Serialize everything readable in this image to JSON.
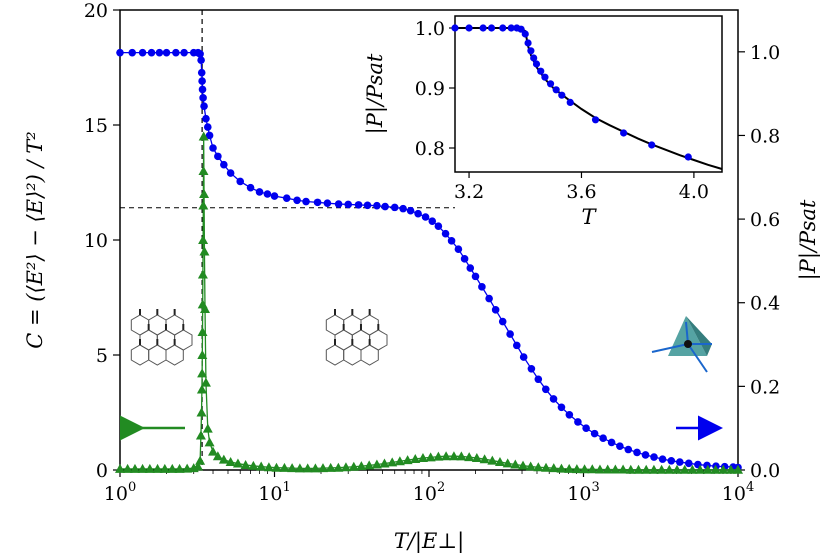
{
  "chart_data": [
    {
      "type": "scatter",
      "x_scale": "log",
      "xlim": [
        1,
        10000
      ],
      "ylim_left": [
        0,
        20
      ],
      "ylim_right": [
        0,
        1.1
      ],
      "xlabel": "T/|E⊥|",
      "ylabel_left": "C = (⟨E²⟩ − ⟨E⟩²) / T²",
      "ylabel_right": "|P|/Psat",
      "x_tick_labels": [
        {
          "base": "10",
          "exp": "0"
        },
        {
          "base": "10",
          "exp": "1"
        },
        {
          "base": "10",
          "exp": "2"
        },
        {
          "base": "10",
          "exp": "3"
        },
        {
          "base": "10",
          "exp": "4"
        }
      ],
      "y_left_ticks": [
        "0",
        "5",
        "10",
        "15",
        "20"
      ],
      "y_right_ticks": [
        "0.0",
        "0.2",
        "0.4",
        "0.6",
        "0.8",
        "1.0"
      ],
      "series": [
        {
          "axis": "right",
          "color": "#0000ee",
          "marker": "circle",
          "x": [
            1.0,
            1.2,
            1.4,
            1.6,
            1.8,
            2.0,
            2.3,
            2.6,
            3.0,
            3.2,
            3.3,
            3.35,
            3.38,
            3.4,
            3.42,
            3.45,
            3.5,
            3.6,
            3.7,
            3.8,
            4.0,
            4.3,
            4.7,
            5.2,
            6,
            7,
            8,
            9,
            10,
            12,
            14,
            16,
            19,
            22,
            26,
            30,
            35,
            40,
            46,
            52,
            60,
            68,
            76,
            85,
            95,
            105,
            115,
            128,
            140,
            155,
            170,
            185,
            200,
            220,
            245,
            270,
            300,
            335,
            370,
            410,
            460,
            510,
            570,
            640,
            720,
            810,
            920,
            1040,
            1180,
            1340,
            1520,
            1720,
            1950,
            2220,
            2520,
            2860,
            3250,
            3700,
            4200,
            4800,
            5500,
            6300,
            7200,
            8200,
            9300,
            10000
          ],
          "y": [
            0.998,
            0.998,
            0.998,
            0.998,
            0.998,
            0.998,
            0.998,
            0.998,
            0.998,
            0.998,
            0.995,
            0.98,
            0.95,
            0.93,
            0.91,
            0.89,
            0.87,
            0.84,
            0.82,
            0.8,
            0.77,
            0.75,
            0.73,
            0.71,
            0.69,
            0.675,
            0.665,
            0.66,
            0.655,
            0.65,
            0.645,
            0.642,
            0.64,
            0.638,
            0.636,
            0.635,
            0.634,
            0.633,
            0.632,
            0.63,
            0.628,
            0.625,
            0.62,
            0.613,
            0.605,
            0.595,
            0.583,
            0.565,
            0.548,
            0.528,
            0.505,
            0.483,
            0.463,
            0.438,
            0.41,
            0.383,
            0.355,
            0.325,
            0.298,
            0.27,
            0.242,
            0.217,
            0.193,
            0.17,
            0.15,
            0.132,
            0.115,
            0.1,
            0.087,
            0.076,
            0.066,
            0.057,
            0.049,
            0.042,
            0.036,
            0.031,
            0.026,
            0.022,
            0.019,
            0.016,
            0.013,
            0.011,
            0.009,
            0.008,
            0.007,
            0.006
          ]
        },
        {
          "axis": "left",
          "color": "#228B22",
          "marker": "triangle",
          "x": [
            1.0,
            1.12,
            1.25,
            1.4,
            1.56,
            1.75,
            1.95,
            2.18,
            2.43,
            2.72,
            3.0,
            3.2,
            3.3,
            3.34,
            3.37,
            3.39,
            3.4,
            3.41,
            3.42,
            3.43,
            3.44,
            3.45,
            3.46,
            3.47,
            3.48,
            3.5,
            3.52,
            3.55,
            3.6,
            3.7,
            3.8,
            4.0,
            4.3,
            4.7,
            5.2,
            5.8,
            6.5,
            7.3,
            8.2,
            9.2,
            10.3,
            11.6,
            13,
            14.6,
            16.4,
            18.4,
            20.6,
            23.1,
            25.9,
            29,
            32.6,
            36.5,
            41,
            46,
            51.5,
            57.8,
            64.8,
            72.7,
            81.5,
            91.4,
            102.5,
            115,
            129,
            145,
            162,
            182,
            204,
            229,
            257,
            288,
            323,
            362,
            406,
            455,
            510,
            572,
            642,
            720,
            808,
            906,
            1016,
            1140,
            1278,
            1434,
            1608,
            1804,
            2023,
            2270,
            2546,
            2856,
            3203,
            3593,
            4030,
            4520,
            5070,
            5687,
            6379,
            7155,
            8026,
            9000,
            10000
          ],
          "y": [
            0.05,
            0.05,
            0.05,
            0.05,
            0.05,
            0.05,
            0.05,
            0.05,
            0.05,
            0.06,
            0.08,
            0.15,
            0.4,
            1.5,
            2.5,
            3.5,
            4.2,
            5.0,
            6.0,
            7.2,
            8.5,
            10.0,
            11.5,
            13.0,
            14.5,
            12.0,
            9.5,
            7.0,
            3.8,
            1.8,
            1.2,
            0.8,
            0.6,
            0.45,
            0.35,
            0.28,
            0.22,
            0.18,
            0.15,
            0.12,
            0.1,
            0.09,
            0.08,
            0.07,
            0.07,
            0.07,
            0.08,
            0.09,
            0.1,
            0.12,
            0.14,
            0.17,
            0.2,
            0.24,
            0.28,
            0.33,
            0.38,
            0.43,
            0.48,
            0.52,
            0.55,
            0.58,
            0.6,
            0.6,
            0.59,
            0.56,
            0.52,
            0.47,
            0.41,
            0.35,
            0.29,
            0.24,
            0.19,
            0.15,
            0.12,
            0.1,
            0.08,
            0.06,
            0.05,
            0.04,
            0.03,
            0.03,
            0.02,
            0.02,
            0.02,
            0.02,
            0.01,
            0.01,
            0.01,
            0.01,
            0.01,
            0.01,
            0.01,
            0.01,
            0.01,
            0.01,
            0.01,
            0.01,
            0.01,
            0.01,
            0.01
          ]
        }
      ],
      "reference_lines": {
        "vertical_x": 3.4,
        "horizontal_y_left": 11.4
      },
      "arrows": [
        {
          "side": "left",
          "color": "#228B22"
        },
        {
          "side": "right",
          "color": "#0000ee"
        }
      ]
    },
    {
      "type": "scatter",
      "xlim": [
        3.15,
        4.1
      ],
      "ylim": [
        0.76,
        1.02
      ],
      "xlabel": "T",
      "ylabel": "|P|/Psat",
      "x_ticks": [
        "3.2",
        "3.6",
        "4.0"
      ],
      "y_ticks": [
        "0.8",
        "0.9",
        "1.0"
      ],
      "curve": {
        "color": "#000000",
        "x": [
          3.15,
          3.2,
          3.25,
          3.3,
          3.35,
          3.38,
          3.4,
          3.41,
          3.42,
          3.44,
          3.47,
          3.5,
          3.55,
          3.6,
          3.65,
          3.7,
          3.75,
          3.8,
          3.85,
          3.9,
          3.95,
          4.0,
          4.05,
          4.1
        ],
        "y": [
          1.0,
          1.0,
          1.0,
          1.0,
          1.0,
          1.0,
          0.995,
          0.97,
          0.955,
          0.935,
          0.915,
          0.9,
          0.882,
          0.865,
          0.85,
          0.838,
          0.827,
          0.816,
          0.806,
          0.797,
          0.788,
          0.78,
          0.772,
          0.765
        ]
      },
      "points": {
        "color": "#0000ee",
        "x": [
          3.15,
          3.2,
          3.25,
          3.28,
          3.32,
          3.35,
          3.37,
          3.385,
          3.4,
          3.41,
          3.42,
          3.43,
          3.44,
          3.455,
          3.47,
          3.49,
          3.51,
          3.53,
          3.56,
          3.65,
          3.75,
          3.85,
          3.98
        ],
        "y": [
          1.0,
          1.0,
          1.0,
          1.0,
          1.0,
          1.0,
          1.0,
          0.998,
          0.99,
          0.975,
          0.962,
          0.95,
          0.94,
          0.928,
          0.918,
          0.907,
          0.897,
          0.888,
          0.876,
          0.847,
          0.825,
          0.805,
          0.785
        ]
      }
    }
  ]
}
